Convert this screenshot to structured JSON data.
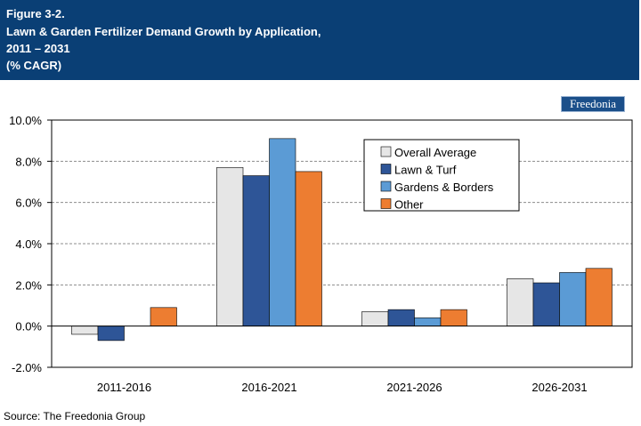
{
  "header": {
    "figure_label": "Figure 3-2.",
    "title_line1": "Lawn & Garden Fertilizer Demand Growth by Application,",
    "title_line2": "2011 – 2031",
    "title_line3": "(% CAGR)"
  },
  "logo": {
    "text": "Freedonia"
  },
  "source": "Source: The Freedonia Group",
  "chart_data": {
    "type": "bar",
    "title": "Lawn & Garden Fertilizer Demand Growth by Application, 2011 – 2031",
    "ylabel": "",
    "xlabel": "",
    "categories": [
      "2011-2016",
      "2016-2021",
      "2021-2026",
      "2026-2031"
    ],
    "series": [
      {
        "name": "Overall Average",
        "color": "#e6e6e6",
        "values": [
          -0.4,
          7.7,
          0.7,
          2.3
        ]
      },
      {
        "name": "Lawn & Turf",
        "color": "#2e5597",
        "values": [
          -0.7,
          7.3,
          0.8,
          2.1
        ]
      },
      {
        "name": "Gardens & Borders",
        "color": "#5b9bd5",
        "values": [
          0.0,
          9.1,
          0.4,
          2.6
        ]
      },
      {
        "name": "Other",
        "color": "#ed7d31",
        "values": [
          0.9,
          7.5,
          0.8,
          2.8
        ]
      }
    ],
    "ylim": [
      -2.0,
      10.0
    ],
    "yticks": [
      "-2.0%",
      "0.0%",
      "2.0%",
      "4.0%",
      "6.0%",
      "8.0%",
      "10.0%"
    ],
    "ytick_values": [
      -2,
      0,
      2,
      4,
      6,
      8,
      10
    ],
    "grid": true,
    "legend_position": "top-right"
  }
}
